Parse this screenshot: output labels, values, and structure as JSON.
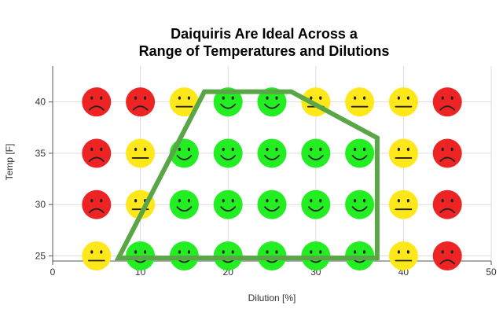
{
  "chart_data": {
    "type": "scatter",
    "title_lines": [
      "Daiquiris Are Ideal Across a",
      "Range of Temperatures and Dilutions"
    ],
    "xlabel": "Dilution [%]",
    "ylabel": "Temp [F]",
    "xlim": [
      0,
      50
    ],
    "ylim": [
      24.5,
      43.5
    ],
    "x_ticks": [
      0,
      10,
      20,
      30,
      40,
      50
    ],
    "y_ticks": [
      25,
      30,
      35,
      40
    ],
    "grid": true,
    "legend": "none",
    "mood_colors": {
      "happy": "#22ee22",
      "neutral": "#ffe81a",
      "sad": "#ee2424"
    },
    "points": [
      {
        "x": 5,
        "y": 40,
        "mood": "sad"
      },
      {
        "x": 10,
        "y": 40,
        "mood": "sad"
      },
      {
        "x": 15,
        "y": 40,
        "mood": "neutral"
      },
      {
        "x": 20,
        "y": 40,
        "mood": "happy"
      },
      {
        "x": 25,
        "y": 40,
        "mood": "happy"
      },
      {
        "x": 30,
        "y": 40,
        "mood": "neutral"
      },
      {
        "x": 35,
        "y": 40,
        "mood": "neutral"
      },
      {
        "x": 40,
        "y": 40,
        "mood": "neutral"
      },
      {
        "x": 45,
        "y": 40,
        "mood": "sad"
      },
      {
        "x": 5,
        "y": 35,
        "mood": "sad"
      },
      {
        "x": 10,
        "y": 35,
        "mood": "neutral"
      },
      {
        "x": 15,
        "y": 35,
        "mood": "happy"
      },
      {
        "x": 20,
        "y": 35,
        "mood": "happy"
      },
      {
        "x": 25,
        "y": 35,
        "mood": "happy"
      },
      {
        "x": 30,
        "y": 35,
        "mood": "happy"
      },
      {
        "x": 35,
        "y": 35,
        "mood": "happy"
      },
      {
        "x": 40,
        "y": 35,
        "mood": "neutral"
      },
      {
        "x": 45,
        "y": 35,
        "mood": "sad"
      },
      {
        "x": 5,
        "y": 30,
        "mood": "sad"
      },
      {
        "x": 10,
        "y": 30,
        "mood": "neutral"
      },
      {
        "x": 15,
        "y": 30,
        "mood": "happy"
      },
      {
        "x": 20,
        "y": 30,
        "mood": "happy"
      },
      {
        "x": 25,
        "y": 30,
        "mood": "happy"
      },
      {
        "x": 30,
        "y": 30,
        "mood": "happy"
      },
      {
        "x": 35,
        "y": 30,
        "mood": "happy"
      },
      {
        "x": 40,
        "y": 30,
        "mood": "neutral"
      },
      {
        "x": 45,
        "y": 30,
        "mood": "sad"
      },
      {
        "x": 5,
        "y": 25,
        "mood": "neutral"
      },
      {
        "x": 10,
        "y": 25,
        "mood": "happy"
      },
      {
        "x": 15,
        "y": 25,
        "mood": "happy"
      },
      {
        "x": 20,
        "y": 25,
        "mood": "happy"
      },
      {
        "x": 25,
        "y": 25,
        "mood": "happy"
      },
      {
        "x": 30,
        "y": 25,
        "mood": "happy"
      },
      {
        "x": 35,
        "y": 25,
        "mood": "happy"
      },
      {
        "x": 40,
        "y": 25,
        "mood": "neutral"
      },
      {
        "x": 45,
        "y": 25,
        "mood": "sad"
      }
    ],
    "ideal_region": {
      "color": "#5aa646",
      "vertices": [
        {
          "x": 7.5,
          "y": 24.8
        },
        {
          "x": 17.3,
          "y": 41.0
        },
        {
          "x": 27.2,
          "y": 41.0
        },
        {
          "x": 37.0,
          "y": 36.5
        },
        {
          "x": 37.0,
          "y": 24.8
        }
      ]
    }
  }
}
